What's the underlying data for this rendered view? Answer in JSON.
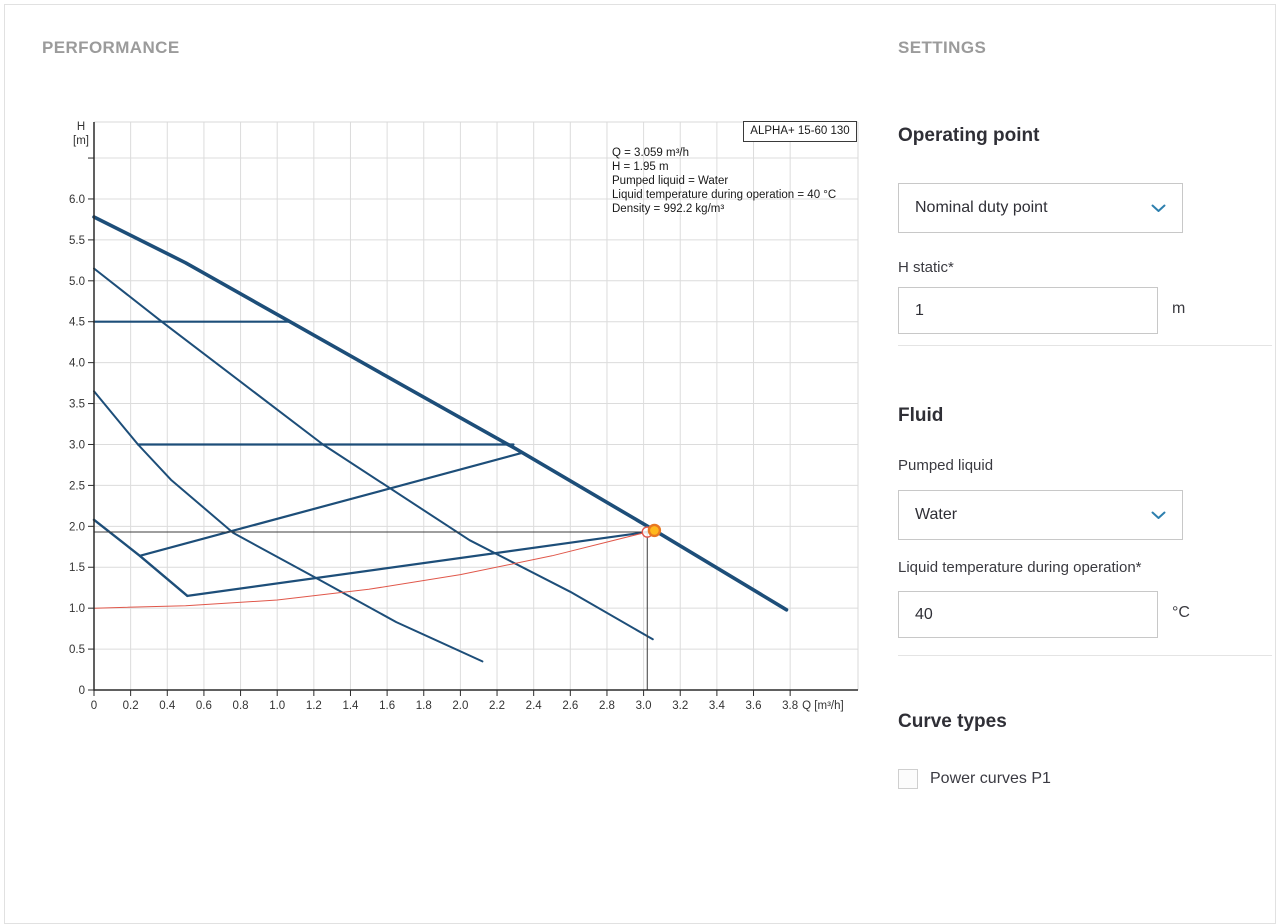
{
  "page": {
    "performance_title": "PERFORMANCE",
    "settings_title": "SETTINGS"
  },
  "settings": {
    "operating_point": {
      "heading": "Operating point",
      "dropdown_value": "Nominal duty point",
      "h_static_label": "H static*",
      "h_static_value": "1",
      "h_static_unit": "m"
    },
    "fluid": {
      "heading": "Fluid",
      "pumped_liquid_label": "Pumped liquid",
      "pumped_liquid_value": "Water",
      "temp_label": "Liquid temperature during operation*",
      "temp_value": "40",
      "temp_unit": "°C"
    },
    "curve_types": {
      "heading": "Curve types",
      "checkbox_label": "Power curves P1",
      "checkbox_checked": false
    },
    "accent_color": "#2d7fae"
  },
  "chart_data": {
    "type": "line",
    "title_box": "ALPHA+ 15-60 130",
    "xlabel": "Q [m³/h]",
    "ylabel_lines": [
      "H",
      "[m]"
    ],
    "xlim": [
      0,
      4.17
    ],
    "ylim": [
      0,
      6.94
    ],
    "grid": true,
    "x_ticks": [
      0,
      0.2,
      0.4,
      0.6,
      0.8,
      1.0,
      1.2,
      1.4,
      1.6,
      1.8,
      2.0,
      2.2,
      2.4,
      2.6,
      2.8,
      3.0,
      3.2,
      3.4,
      3.6,
      3.8
    ],
    "y_ticks": [
      0,
      0.5,
      1.0,
      1.5,
      2.0,
      2.5,
      3.0,
      3.5,
      4.0,
      4.5,
      5.0,
      5.5,
      6.0,
      6.5
    ],
    "y_label_max": 6.0,
    "annotation": [
      "Q = 3.059 m³/h",
      "H = 1.95 m",
      "Pumped liquid = Water",
      "Liquid temperature during operation = 40 °C",
      "Density = 992.2 kg/m³"
    ],
    "operating_point": {
      "q": 3.059,
      "h": 1.95
    },
    "crosshair": {
      "q": 3.02,
      "h": 1.93
    },
    "colors": {
      "curve": "#1d4e79",
      "system": "#e0574a",
      "marker_fill": "#ffb81c",
      "marker_ring": "#e87722"
    },
    "series": [
      {
        "name": "speed-3-max-curve",
        "color": "#1d4e79",
        "width": 3.6,
        "points": [
          [
            0,
            5.78
          ],
          [
            0.5,
            5.22
          ],
          [
            1.07,
            4.5
          ],
          [
            1.6,
            3.83
          ],
          [
            2.3,
            2.95
          ],
          [
            3.06,
            1.95
          ],
          [
            3.78,
            0.98
          ]
        ]
      },
      {
        "name": "speed-2-curve",
        "color": "#1d4e79",
        "width": 2,
        "points": [
          [
            0,
            5.15
          ],
          [
            0.37,
            4.5
          ],
          [
            1.25,
            3.0
          ],
          [
            2.05,
            1.83
          ],
          [
            2.6,
            1.2
          ],
          [
            3.05,
            0.62
          ]
        ]
      },
      {
        "name": "speed-1-curve",
        "color": "#1d4e79",
        "width": 2,
        "points": [
          [
            0,
            3.65
          ],
          [
            0.24,
            3.0
          ],
          [
            0.42,
            2.57
          ],
          [
            0.76,
            1.92
          ],
          [
            1.22,
            1.36
          ],
          [
            1.65,
            0.83
          ],
          [
            2.12,
            0.35
          ]
        ]
      },
      {
        "name": "min-speed-segment",
        "color": "#1d4e79",
        "width": 2.4,
        "points": [
          [
            0,
            2.08
          ],
          [
            0.25,
            1.64
          ],
          [
            0.51,
            1.15
          ]
        ]
      },
      {
        "name": "constant-pressure-curve-4-5",
        "color": "#1d4e79",
        "width": 2.2,
        "points": [
          [
            0,
            4.5
          ],
          [
            1.07,
            4.5
          ]
        ]
      },
      {
        "name": "constant-pressure-curve-3-0",
        "color": "#1d4e79",
        "width": 2.2,
        "points": [
          [
            0.24,
            3.0
          ],
          [
            2.29,
            3.0
          ]
        ]
      },
      {
        "name": "proportional-pressure-curve-2",
        "color": "#1d4e79",
        "width": 2.2,
        "points": [
          [
            0.25,
            1.64
          ],
          [
            2.34,
            2.9
          ]
        ]
      },
      {
        "name": "proportional-pressure-curve-1",
        "color": "#1d4e79",
        "width": 2.2,
        "points": [
          [
            0.51,
            1.15
          ],
          [
            3.02,
            1.93
          ]
        ]
      },
      {
        "name": "system-curve",
        "color": "#e0574a",
        "width": 1,
        "points": [
          [
            0,
            1.0
          ],
          [
            0.5,
            1.03
          ],
          [
            1.0,
            1.1
          ],
          [
            1.5,
            1.23
          ],
          [
            2.0,
            1.41
          ],
          [
            2.5,
            1.64
          ],
          [
            3.02,
            1.93
          ]
        ]
      }
    ]
  }
}
